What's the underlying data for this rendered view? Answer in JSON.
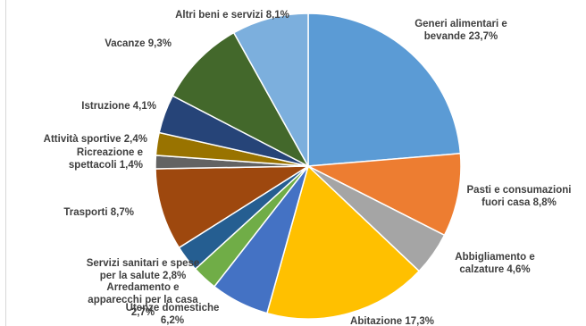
{
  "chart_data": {
    "type": "pie",
    "slices": [
      {
        "label_lines": [
          "Generi alimentari e",
          "bevande 23,7%"
        ],
        "value": 23.7,
        "color": "#5b9bd5"
      },
      {
        "label_lines": [
          "Pasti e consumazioni",
          "fuori casa 8,8%"
        ],
        "value": 8.8,
        "color": "#ed7d31"
      },
      {
        "label_lines": [
          "Abbigliamento e",
          "calzature 4,6%"
        ],
        "value": 4.6,
        "color": "#a5a5a5"
      },
      {
        "label_lines": [
          "Abitazione 17,3%"
        ],
        "value": 17.3,
        "color": "#ffc000"
      },
      {
        "label_lines": [
          "Utenze domestiche",
          "6,2%"
        ],
        "value": 6.2,
        "color": "#4472c4"
      },
      {
        "label_lines": [
          "Arredamento e",
          "apparecchi per la casa",
          "2,7%"
        ],
        "value": 2.7,
        "color": "#70ad47"
      },
      {
        "label_lines": [
          "Servizi sanitari e spese",
          "per la salute 2,8%"
        ],
        "value": 2.8,
        "color": "#255e91"
      },
      {
        "label_lines": [
          "Trasporti 8,7%"
        ],
        "value": 8.7,
        "color": "#9e480e"
      },
      {
        "label_lines": [
          "Ricreazione e",
          "spettacoli 1,4%"
        ],
        "value": 1.4,
        "color": "#636363"
      },
      {
        "label_lines": [
          "Attività sportive 2,4%"
        ],
        "value": 2.4,
        "color": "#997300"
      },
      {
        "label_lines": [
          "Istruzione 4,1%"
        ],
        "value": 4.1,
        "color": "#264478"
      },
      {
        "label_lines": [
          "Vacanze 9,3%"
        ],
        "value": 9.3,
        "color": "#43682b"
      },
      {
        "label_lines": [
          "Altri beni e servizi 8,1%"
        ],
        "value": 8.1,
        "color": "#7cafdd"
      }
    ]
  }
}
